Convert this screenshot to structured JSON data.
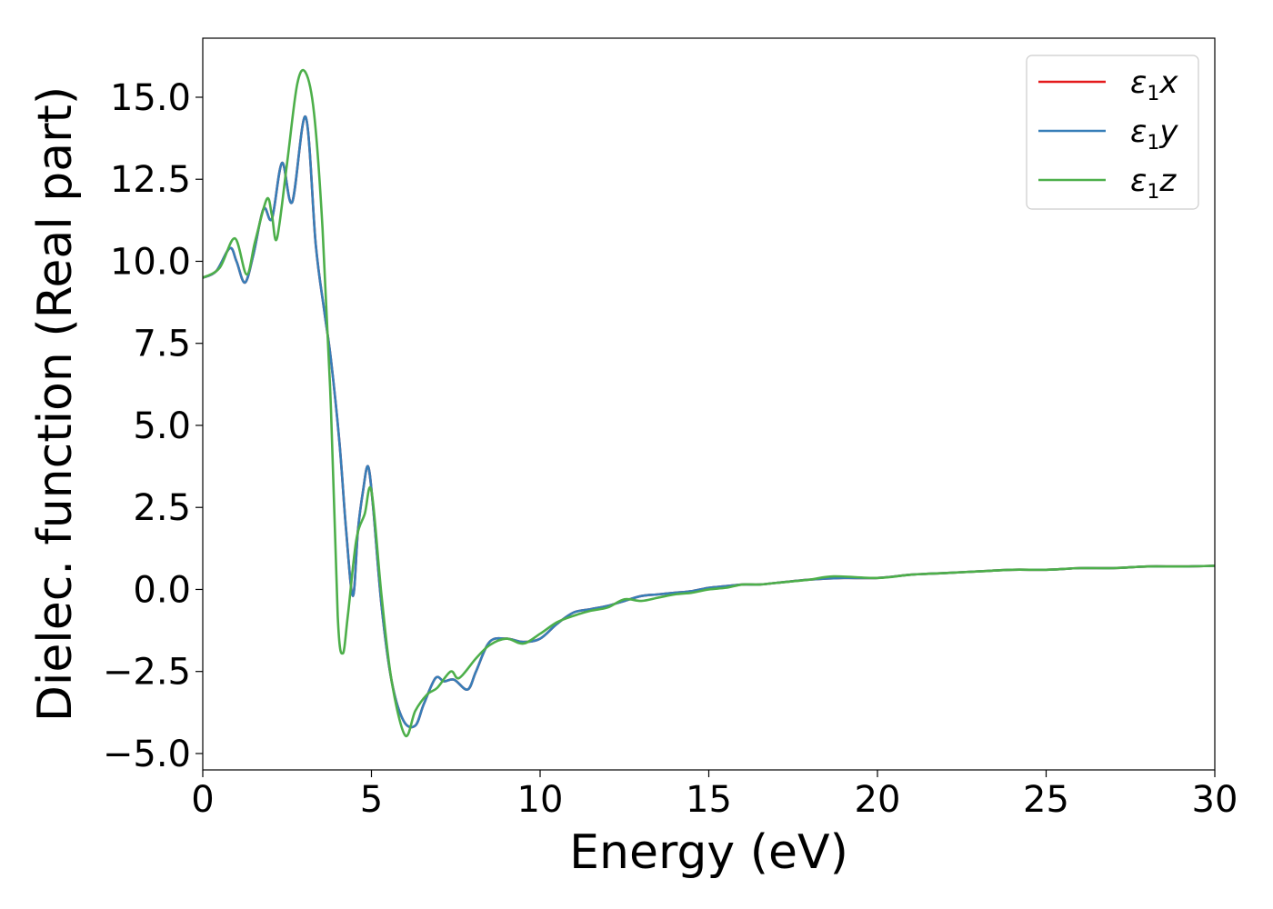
{
  "chart_data": {
    "type": "line",
    "xlabel": "Energy (eV)",
    "ylabel": "Dielec. function (Real part)",
    "xlim": [
      0,
      30
    ],
    "ylim": [
      -5.5,
      16.8
    ],
    "xticks": [
      0,
      5,
      10,
      15,
      20,
      25,
      30
    ],
    "xtick_labels": [
      "0",
      "5",
      "10",
      "15",
      "20",
      "25",
      "30"
    ],
    "yticks": [
      -5.0,
      -2.5,
      0.0,
      2.5,
      5.0,
      7.5,
      10.0,
      12.5,
      15.0
    ],
    "ytick_labels": [
      "−5.0",
      "−2.5",
      "0.0",
      "2.5",
      "5.0",
      "7.5",
      "10.0",
      "12.5",
      "15.0"
    ],
    "grid": false,
    "legend_position": "top-right",
    "series": [
      {
        "name": "ε₁x",
        "legend_symbol": "ε",
        "legend_sub": "1",
        "legend_var": "x",
        "color": "#e41a1c",
        "x": [
          0,
          0.4,
          0.8,
          1.0,
          1.25,
          1.5,
          1.8,
          2.05,
          2.35,
          2.65,
          3.05,
          3.35,
          3.6,
          3.8,
          4.05,
          4.25,
          4.45,
          4.6,
          4.75,
          4.9,
          5.05,
          5.3,
          5.6,
          5.95,
          6.3,
          6.55,
          6.9,
          7.15,
          7.45,
          7.85,
          8.1,
          8.5,
          9.0,
          9.5,
          10.0,
          10.5,
          11.0,
          11.5,
          12.0,
          12.5,
          13.0,
          13.5,
          14.0,
          14.5,
          15.0,
          15.5,
          16.0,
          16.5,
          17.0,
          18.0,
          19.0,
          20.0,
          21.0,
          22.0,
          23.0,
          24.0,
          25.0,
          26.0,
          27.0,
          28.0,
          29.0,
          30.0
        ],
        "y": [
          9.5,
          9.7,
          10.4,
          10.0,
          9.35,
          10.2,
          11.6,
          11.3,
          13.0,
          11.8,
          14.4,
          10.5,
          8.5,
          7.0,
          4.5,
          1.8,
          -0.2,
          1.8,
          3.0,
          3.75,
          2.5,
          -0.5,
          -2.8,
          -4.0,
          -4.15,
          -3.5,
          -2.7,
          -2.8,
          -2.75,
          -3.05,
          -2.5,
          -1.6,
          -1.5,
          -1.6,
          -1.5,
          -1.05,
          -0.7,
          -0.6,
          -0.5,
          -0.35,
          -0.2,
          -0.15,
          -0.1,
          -0.05,
          0.05,
          0.1,
          0.15,
          0.15,
          0.2,
          0.3,
          0.35,
          0.35,
          0.45,
          0.5,
          0.55,
          0.6,
          0.6,
          0.65,
          0.65,
          0.7,
          0.7,
          0.72
        ]
      },
      {
        "name": "ε₁y",
        "legend_symbol": "ε",
        "legend_sub": "1",
        "legend_var": "y",
        "color": "#377eb8",
        "x": [
          0,
          0.4,
          0.8,
          1.0,
          1.25,
          1.5,
          1.8,
          2.05,
          2.35,
          2.65,
          3.05,
          3.35,
          3.6,
          3.8,
          4.05,
          4.25,
          4.45,
          4.6,
          4.75,
          4.9,
          5.05,
          5.3,
          5.6,
          5.95,
          6.3,
          6.55,
          6.9,
          7.15,
          7.45,
          7.85,
          8.1,
          8.5,
          9.0,
          9.5,
          10.0,
          10.5,
          11.0,
          11.5,
          12.0,
          12.5,
          13.0,
          13.5,
          14.0,
          14.5,
          15.0,
          15.5,
          16.0,
          16.5,
          17.0,
          18.0,
          19.0,
          20.0,
          21.0,
          22.0,
          23.0,
          24.0,
          25.0,
          26.0,
          27.0,
          28.0,
          29.0,
          30.0
        ],
        "y": [
          9.5,
          9.7,
          10.4,
          10.0,
          9.35,
          10.2,
          11.6,
          11.3,
          13.0,
          11.8,
          14.4,
          10.5,
          8.5,
          7.0,
          4.5,
          1.8,
          -0.2,
          1.8,
          3.0,
          3.75,
          2.5,
          -0.5,
          -2.8,
          -4.0,
          -4.15,
          -3.5,
          -2.7,
          -2.8,
          -2.75,
          -3.05,
          -2.5,
          -1.6,
          -1.5,
          -1.6,
          -1.5,
          -1.05,
          -0.7,
          -0.6,
          -0.5,
          -0.35,
          -0.2,
          -0.15,
          -0.1,
          -0.05,
          0.05,
          0.1,
          0.15,
          0.15,
          0.2,
          0.3,
          0.35,
          0.35,
          0.45,
          0.5,
          0.55,
          0.6,
          0.6,
          0.65,
          0.65,
          0.7,
          0.7,
          0.72
        ]
      },
      {
        "name": "ε₁z",
        "legend_symbol": "ε",
        "legend_sub": "1",
        "legend_var": "z",
        "color": "#4daf4a",
        "x": [
          0,
          0.5,
          0.95,
          1.3,
          1.55,
          1.9,
          2.05,
          2.2,
          2.5,
          2.8,
          3.05,
          3.3,
          3.55,
          3.8,
          4.0,
          4.15,
          4.3,
          4.55,
          4.8,
          5.0,
          5.3,
          5.6,
          6.0,
          6.3,
          6.65,
          6.95,
          7.35,
          7.6,
          8.1,
          8.5,
          9.0,
          9.5,
          10.0,
          10.5,
          11.0,
          11.5,
          12.0,
          12.5,
          13.0,
          13.5,
          14.0,
          14.5,
          15.0,
          15.5,
          16.0,
          16.5,
          17.0,
          18.0,
          18.7,
          20.0,
          21.0,
          22.0,
          23.0,
          24.0,
          25.0,
          26.0,
          27.0,
          28.0,
          29.0,
          30.0
        ],
        "y": [
          9.5,
          9.8,
          10.7,
          9.6,
          10.6,
          11.9,
          11.4,
          10.7,
          13.0,
          15.4,
          15.75,
          14.5,
          11.0,
          5.5,
          -0.8,
          -1.95,
          -0.8,
          1.5,
          2.3,
          3.0,
          -0.2,
          -2.8,
          -4.45,
          -3.7,
          -3.2,
          -3.0,
          -2.5,
          -2.7,
          -2.1,
          -1.7,
          -1.5,
          -1.65,
          -1.35,
          -1.0,
          -0.8,
          -0.65,
          -0.55,
          -0.3,
          -0.35,
          -0.25,
          -0.15,
          -0.1,
          0.0,
          0.05,
          0.15,
          0.15,
          0.2,
          0.3,
          0.4,
          0.35,
          0.45,
          0.5,
          0.55,
          0.6,
          0.6,
          0.65,
          0.65,
          0.7,
          0.7,
          0.72
        ]
      }
    ]
  }
}
